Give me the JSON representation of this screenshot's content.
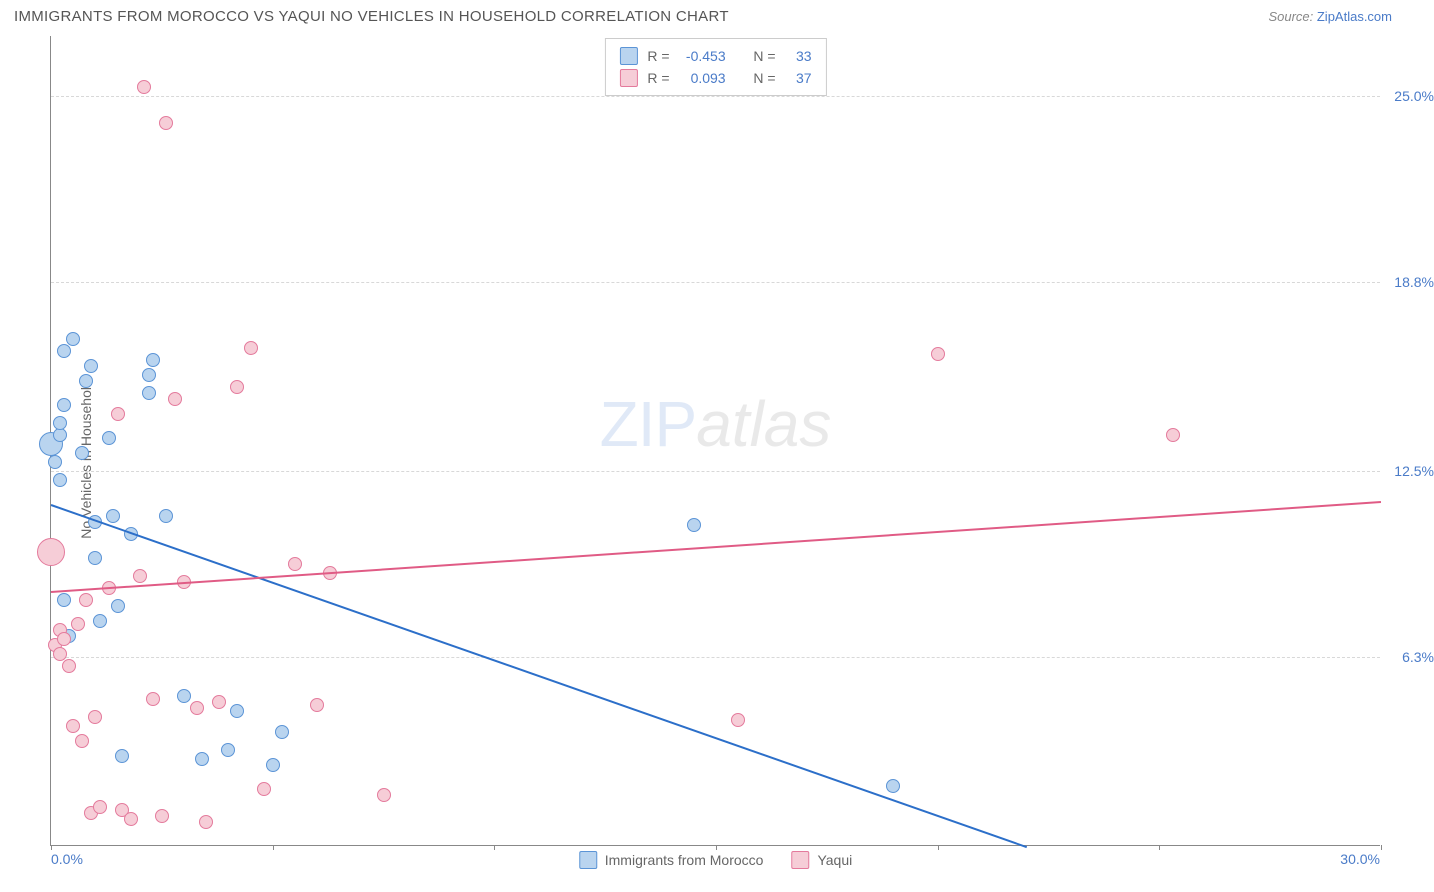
{
  "title": "IMMIGRANTS FROM MOROCCO VS YAQUI NO VEHICLES IN HOUSEHOLD CORRELATION CHART",
  "source_prefix": "Source: ",
  "source_link": "ZipAtlas.com",
  "ylabel": "No Vehicles in Household",
  "xlim": [
    0.0,
    30.0
  ],
  "ylim": [
    0.0,
    27.0
  ],
  "xtick_labels": {
    "left": "0.0%",
    "right": "30.0%"
  },
  "xtick_marks": [
    0,
    5,
    10,
    15,
    20,
    25,
    30
  ],
  "yticks": [
    {
      "v": 6.3,
      "label": "6.3%"
    },
    {
      "v": 12.5,
      "label": "12.5%"
    },
    {
      "v": 18.8,
      "label": "18.8%"
    },
    {
      "v": 25.0,
      "label": "25.0%"
    }
  ],
  "watermark": {
    "part1": "ZIP",
    "part2": "atlas"
  },
  "series": [
    {
      "name": "Immigrants from Morocco",
      "fill": "#b9d4ef",
      "stroke": "#5b94d6",
      "R": "-0.453",
      "N": "33",
      "marker_size": 14,
      "regression": {
        "x1": 0.0,
        "y1": 11.4,
        "x2": 22.0,
        "y2": 0.0,
        "color": "#2c6fc9",
        "width": 2
      },
      "points": [
        [
          0.0,
          13.4,
          24
        ],
        [
          0.1,
          12.8
        ],
        [
          0.2,
          12.2
        ],
        [
          0.2,
          13.7
        ],
        [
          0.2,
          14.1
        ],
        [
          0.3,
          14.7
        ],
        [
          0.3,
          16.5
        ],
        [
          0.3,
          8.2
        ],
        [
          0.4,
          7.0
        ],
        [
          0.5,
          16.9
        ],
        [
          0.7,
          13.1
        ],
        [
          0.8,
          15.5
        ],
        [
          0.9,
          16.0
        ],
        [
          1.0,
          10.8
        ],
        [
          1.0,
          9.6
        ],
        [
          1.1,
          7.5
        ],
        [
          1.3,
          13.6
        ],
        [
          1.4,
          11.0
        ],
        [
          1.5,
          8.0
        ],
        [
          1.6,
          3.0
        ],
        [
          1.8,
          10.4
        ],
        [
          2.2,
          15.7
        ],
        [
          2.2,
          15.1
        ],
        [
          2.3,
          16.2
        ],
        [
          2.6,
          11.0
        ],
        [
          3.0,
          5.0
        ],
        [
          3.4,
          2.9
        ],
        [
          4.0,
          3.2
        ],
        [
          4.2,
          4.5
        ],
        [
          5.0,
          2.7
        ],
        [
          5.2,
          3.8
        ],
        [
          14.5,
          10.7
        ],
        [
          19.0,
          2.0
        ]
      ]
    },
    {
      "name": "Yaqui",
      "fill": "#f6cdd7",
      "stroke": "#e47a9c",
      "R": "0.093",
      "N": "37",
      "marker_size": 14,
      "regression": {
        "x1": 0.0,
        "y1": 8.5,
        "x2": 30.0,
        "y2": 11.5,
        "color": "#e05b85",
        "width": 2
      },
      "points": [
        [
          0.0,
          9.8,
          28
        ],
        [
          0.1,
          6.7
        ],
        [
          0.2,
          6.4
        ],
        [
          0.2,
          7.2
        ],
        [
          0.3,
          6.9
        ],
        [
          0.4,
          6.0
        ],
        [
          0.5,
          4.0
        ],
        [
          0.6,
          7.4
        ],
        [
          0.7,
          3.5
        ],
        [
          0.8,
          8.2
        ],
        [
          0.9,
          1.1
        ],
        [
          1.0,
          4.3
        ],
        [
          1.1,
          1.3
        ],
        [
          1.3,
          8.6
        ],
        [
          1.5,
          14.4
        ],
        [
          1.6,
          1.2
        ],
        [
          1.8,
          0.9
        ],
        [
          2.0,
          9.0
        ],
        [
          2.1,
          25.3
        ],
        [
          2.3,
          4.9
        ],
        [
          2.5,
          1.0
        ],
        [
          2.8,
          14.9
        ],
        [
          3.0,
          8.8
        ],
        [
          3.3,
          4.6
        ],
        [
          3.5,
          0.8
        ],
        [
          3.8,
          4.8
        ],
        [
          4.2,
          15.3
        ],
        [
          4.5,
          16.6
        ],
        [
          4.8,
          1.9
        ],
        [
          5.5,
          9.4
        ],
        [
          6.0,
          4.7
        ],
        [
          6.3,
          9.1
        ],
        [
          7.5,
          1.7
        ],
        [
          15.5,
          4.2
        ],
        [
          20.0,
          16.4
        ],
        [
          25.3,
          13.7
        ],
        [
          2.6,
          24.1
        ]
      ]
    }
  ],
  "legend_labels": {
    "R": "R =",
    "N": "N ="
  },
  "colors": {
    "title": "#555555",
    "axis_text": "#666666",
    "tick_text": "#4a7bc8",
    "grid": "#d8d8d8",
    "border": "#888888"
  }
}
